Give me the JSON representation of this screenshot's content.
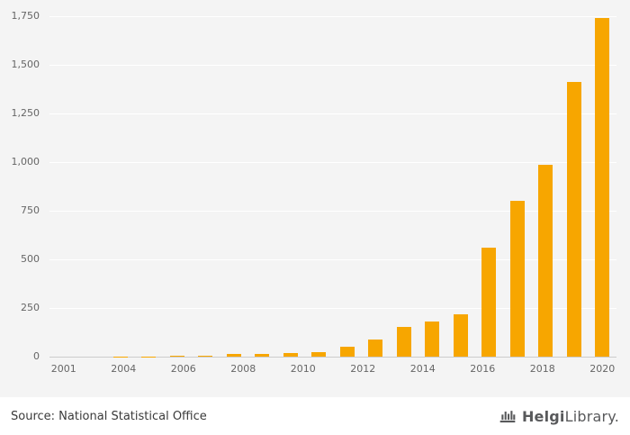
{
  "footer": {
    "source": "Source: National Statistical Office",
    "logo": {
      "bold": "Helgi",
      "light": "Library",
      "dot": "."
    }
  },
  "colors": {
    "bar": "#F7A600",
    "canvas_bg": "#F4F4F4",
    "grid_line": "#FFFFFF",
    "axis_line": "#CCCCCC",
    "tick_text": "#666666",
    "footer_bg": "#FFFFFF",
    "footer_text": "#3A3A3A",
    "logo_color": "#58595B"
  },
  "chart_data": {
    "type": "bar",
    "title": "",
    "xlabel": "",
    "ylabel": "",
    "grid": true,
    "legend_position": "none",
    "years": [
      2001,
      2002,
      2003,
      2004,
      2005,
      2006,
      2007,
      2008,
      2009,
      2010,
      2011,
      2012,
      2013,
      2014,
      2015,
      2016,
      2017,
      2018,
      2019,
      2020
    ],
    "values": [
      0,
      0,
      1,
      1,
      3,
      7,
      12,
      13,
      18,
      25,
      52,
      88,
      155,
      180,
      220,
      560,
      800,
      985,
      1410,
      1740
    ],
    "x_tick_labels": [
      "2001",
      "2004",
      "2006",
      "2008",
      "2010",
      "2012",
      "2014",
      "2016",
      "2018",
      "2020"
    ],
    "y_ticks": [
      0,
      250,
      500,
      750,
      1000,
      1250,
      1500,
      1750
    ],
    "y_tick_labels": [
      "0",
      "250",
      "500",
      "750",
      "1,000",
      "1,250",
      "1,500",
      "1,750"
    ],
    "ylim": [
      0,
      1750
    ]
  }
}
